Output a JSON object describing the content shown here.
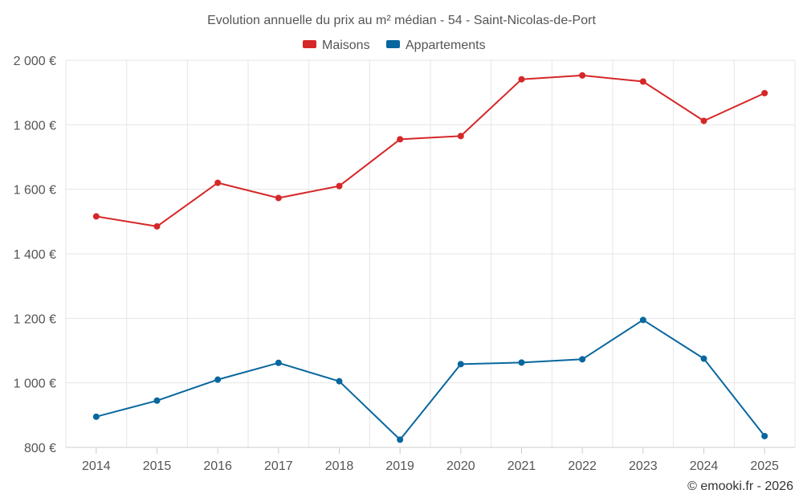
{
  "chart_data": {
    "type": "line",
    "title": "Evolution annuelle du prix au m² médian - 54 - Saint-Nicolas-de-Port",
    "categories": [
      "2014",
      "2015",
      "2016",
      "2017",
      "2018",
      "2019",
      "2020",
      "2021",
      "2022",
      "2023",
      "2024",
      "2025"
    ],
    "series": [
      {
        "name": "Maisons",
        "color": "#d62728",
        "values": [
          1516,
          1485,
          1620,
          1573,
          1610,
          1755,
          1765,
          1941,
          1953,
          1934,
          1812,
          1898
        ]
      },
      {
        "name": "Appartements",
        "color": "#08679e",
        "values": [
          895,
          945,
          1010,
          1062,
          1005,
          824,
          1058,
          1063,
          1073,
          1195,
          1075,
          835
        ]
      }
    ],
    "ylim": [
      800,
      2000
    ],
    "yticks": [
      800,
      1000,
      1200,
      1400,
      1600,
      1800,
      2000
    ],
    "ytick_labels": [
      "800 €",
      "1 000 €",
      "1 200 €",
      "1 400 €",
      "1 600 €",
      "1 800 €",
      "2 000 €"
    ],
    "grid": true,
    "legend": "top-center",
    "xlabel": "",
    "ylabel": ""
  },
  "credit": "© emooki.fr - 2026"
}
